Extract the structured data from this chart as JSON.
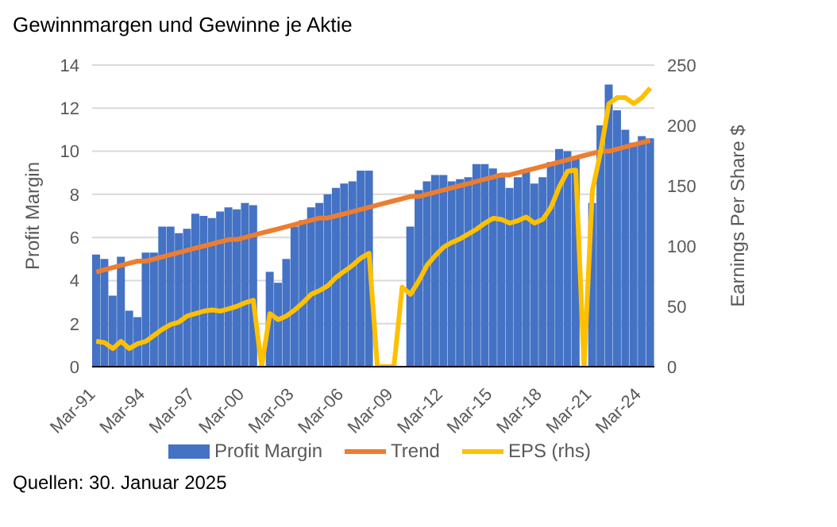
{
  "chart_data": {
    "type": "bar",
    "title": "Gewinnmargen und Gewinne je Aktie",
    "categories": [
      "Mar-91",
      null,
      null,
      null,
      null,
      null,
      "Mar-94",
      null,
      null,
      null,
      null,
      null,
      "Mar-97",
      null,
      null,
      null,
      null,
      null,
      "Mar-00",
      null,
      null,
      null,
      null,
      null,
      "Mar-03",
      null,
      null,
      null,
      null,
      null,
      "Mar-06",
      null,
      null,
      null,
      null,
      null,
      "Mar-09",
      null,
      null,
      null,
      null,
      null,
      "Mar-12",
      null,
      null,
      null,
      null,
      null,
      "Mar-15",
      null,
      null,
      null,
      null,
      null,
      "Mar-18",
      null,
      null,
      null,
      null,
      null,
      "Mar-21",
      null,
      null,
      null,
      null,
      null,
      "Mar-24",
      null
    ],
    "series": [
      {
        "name": "Profit Margin",
        "color": "#4472c4",
        "values": [
          5.2,
          5.0,
          3.3,
          5.1,
          2.6,
          2.3,
          5.3,
          5.3,
          6.5,
          6.5,
          6.2,
          6.4,
          7.1,
          7.0,
          6.9,
          7.2,
          7.4,
          7.3,
          7.6,
          7.5,
          null,
          4.4,
          3.9,
          5.0,
          6.5,
          6.8,
          7.4,
          7.6,
          8.0,
          8.3,
          8.5,
          8.6,
          9.1,
          9.1,
          null,
          null,
          null,
          null,
          6.5,
          8.2,
          8.6,
          8.9,
          8.9,
          8.6,
          8.7,
          8.8,
          9.4,
          9.4,
          9.2,
          8.8,
          8.3,
          8.8,
          9.1,
          8.5,
          8.8,
          9.5,
          10.1,
          10.0,
          9.7,
          null,
          7.6,
          11.2,
          13.1,
          11.9,
          11.0,
          10.4,
          10.7,
          10.6
        ]
      },
      {
        "name": "Trend",
        "type": "line",
        "color": "#ed7d31",
        "values": [
          4.4,
          4.5,
          4.6,
          4.7,
          4.8,
          4.9,
          4.9,
          5.0,
          5.1,
          5.2,
          5.3,
          5.4,
          5.5,
          5.6,
          5.7,
          5.8,
          5.9,
          5.9,
          6.0,
          6.1,
          6.2,
          6.3,
          6.4,
          6.5,
          6.6,
          6.7,
          6.8,
          6.9,
          6.9,
          7.0,
          7.1,
          7.2,
          7.3,
          7.4,
          7.5,
          7.6,
          7.7,
          7.8,
          7.9,
          7.9,
          8.0,
          8.1,
          8.2,
          8.3,
          8.4,
          8.5,
          8.6,
          8.7,
          8.8,
          8.9,
          8.9,
          9.0,
          9.1,
          9.2,
          9.3,
          9.4,
          9.5,
          9.6,
          9.7,
          9.8,
          9.9,
          10.0,
          10.0,
          10.1,
          10.2,
          10.3,
          10.4,
          10.5
        ]
      },
      {
        "name": "EPS (rhs)",
        "type": "line",
        "axis": "y2",
        "color": "#ffc000",
        "values": [
          21,
          20,
          15,
          21,
          15,
          19,
          21,
          26,
          31,
          35,
          37,
          42,
          44,
          46,
          47,
          46,
          48,
          50,
          53,
          55,
          0,
          44,
          39,
          42,
          47,
          53,
          60,
          63,
          67,
          74,
          79,
          84,
          90,
          94,
          0,
          0,
          0,
          66,
          60,
          71,
          84,
          92,
          99,
          103,
          106,
          110,
          114,
          119,
          123,
          122,
          119,
          121,
          124,
          119,
          122,
          132,
          149,
          162,
          163,
          0,
          146,
          178,
          218,
          223,
          223,
          218,
          223,
          231
        ]
      }
    ],
    "ylabel": "Profit Margin",
    "y2label": "Earnings Per Share $",
    "ylim": [
      0,
      14
    ],
    "yticks": [
      0,
      2,
      4,
      6,
      8,
      10,
      12,
      14
    ],
    "y2lim": [
      0,
      250
    ],
    "y2ticks": [
      0,
      50,
      100,
      150,
      200,
      250
    ],
    "grid": "y",
    "legend": "bottom",
    "marker": "none",
    "line_style": "solid",
    "annotations": [
      "Quellen: 30. Januar 2025"
    ]
  }
}
